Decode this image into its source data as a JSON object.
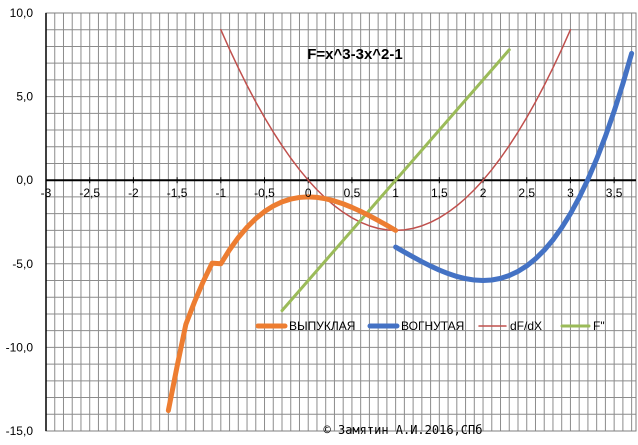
{
  "chart_data": {
    "type": "line",
    "title": "F=x^3-3x^2-1",
    "xlabel": "",
    "ylabel": "",
    "xlim": [
      -3,
      3.75
    ],
    "ylim": [
      -15,
      10
    ],
    "grid": true,
    "x_ticks": [
      "-3",
      "-2,5",
      "-2",
      "-1,5",
      "-1",
      "-0,5",
      "0",
      "0,5",
      "1",
      "1,5",
      "2",
      "2,5",
      "3",
      "3,5"
    ],
    "x_tick_values": [
      -3,
      -2.5,
      -2,
      -1.5,
      -1,
      -0.5,
      0,
      0.5,
      1,
      1.5,
      2,
      2.5,
      3,
      3.5
    ],
    "y_ticks": [
      "10,0",
      "5,0",
      "0,0",
      "-5,0",
      "-10,0",
      "-15,0"
    ],
    "y_tick_values": [
      10,
      5,
      0,
      -5,
      -10,
      -15
    ],
    "legend_position": "inside-lower-right",
    "series": [
      {
        "name": "ВЫПУКЛАЯ",
        "color": "#ED7D31",
        "x": [
          -1.6,
          -1.5,
          -1.4,
          -1.3,
          -1.2,
          -1.1,
          -1.0,
          -0.9,
          -0.8,
          -0.7,
          -0.6,
          -0.5,
          -0.4,
          -0.3,
          -0.2,
          -0.1,
          0.0,
          0.1,
          0.2,
          0.3,
          0.4,
          0.5,
          0.6,
          0.7,
          0.8,
          0.9,
          1.0
        ],
        "y": [
          -13.776,
          -11.125,
          -8.624,
          -7.267,
          -6.048,
          -4.961,
          -5.0,
          -4.159,
          -3.432,
          -2.813,
          -2.296,
          -1.875,
          -1.544,
          -1.297,
          -1.128,
          -1.031,
          -1.0,
          -1.029,
          -1.112,
          -1.243,
          -1.416,
          -1.625,
          -1.864,
          -2.127,
          -2.408,
          -2.701,
          -3.0
        ]
      },
      {
        "name": "ВОГНУТАЯ",
        "color": "#4472C4",
        "x": [
          1.0,
          1.1,
          1.2,
          1.3,
          1.4,
          1.5,
          1.6,
          1.7,
          1.8,
          1.9,
          2.0,
          2.1,
          2.2,
          2.3,
          2.4,
          2.5,
          2.6,
          2.7,
          2.8,
          2.9,
          3.0,
          3.1,
          3.2,
          3.3,
          3.4,
          3.5,
          3.6,
          3.7
        ],
        "y": [
          -4.0,
          -4.299,
          -4.592,
          -4.873,
          -5.136,
          -5.375,
          -5.584,
          -5.757,
          -5.888,
          -5.971,
          -6.0,
          -5.969,
          -5.872,
          -5.703,
          -5.456,
          -5.125,
          -4.704,
          -4.187,
          -3.568,
          -2.841,
          -2.0,
          -1.039,
          0.048,
          1.267,
          2.624,
          4.125,
          5.776,
          7.583
        ]
      },
      {
        "name": "dF/dX",
        "color": "#C0504D",
        "x": [
          -1.0,
          -0.9,
          -0.8,
          -0.7,
          -0.6,
          -0.5,
          -0.4,
          -0.3,
          -0.2,
          -0.1,
          0.0,
          0.1,
          0.2,
          0.3,
          0.4,
          0.5,
          0.6,
          0.7,
          0.8,
          0.9,
          1.0,
          1.1,
          1.2,
          1.3,
          1.4,
          1.5,
          1.6,
          1.7,
          1.8,
          1.9,
          2.0,
          2.1,
          2.2,
          2.3,
          2.4,
          2.5,
          2.6,
          2.7,
          2.8,
          2.9,
          3.0
        ],
        "y": [
          9.0,
          7.83,
          6.72,
          5.67,
          4.68,
          3.75,
          2.88,
          2.07,
          1.32,
          0.63,
          0.0,
          -0.57,
          -1.08,
          -1.53,
          -1.92,
          -2.25,
          -2.52,
          -2.73,
          -2.88,
          -2.97,
          -3.0,
          -2.97,
          -2.88,
          -2.73,
          -2.52,
          -2.25,
          -1.92,
          -1.53,
          -1.08,
          -0.57,
          0.0,
          0.63,
          1.32,
          2.07,
          2.88,
          3.75,
          4.68,
          5.67,
          6.72,
          7.83,
          9.0
        ]
      },
      {
        "name": "F\"",
        "color": "#9BBB59",
        "x": [
          -0.3,
          2.3
        ],
        "y": [
          -7.8,
          7.8
        ]
      }
    ],
    "annotation": "© Замятин А.И.2016,СПб"
  }
}
